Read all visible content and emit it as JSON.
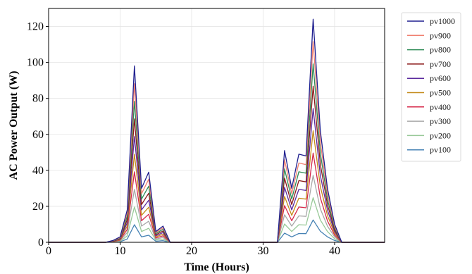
{
  "chart_data": {
    "type": "line",
    "title": "",
    "xlabel": "Time (Hours)",
    "ylabel": "AC Power Output (W)",
    "xlim": [
      0,
      47
    ],
    "ylim": [
      0,
      130
    ],
    "xticks": [
      0,
      10,
      20,
      30,
      40
    ],
    "yticks": [
      0,
      20,
      40,
      60,
      80,
      100,
      120
    ],
    "grid": true,
    "legend_position": "outside-right",
    "x": [
      0,
      1,
      2,
      3,
      4,
      5,
      6,
      7,
      8,
      9,
      10,
      11,
      12,
      13,
      14,
      15,
      16,
      17,
      18,
      19,
      20,
      21,
      22,
      23,
      24,
      25,
      26,
      27,
      28,
      29,
      30,
      31,
      32,
      33,
      34,
      35,
      36,
      37,
      38,
      39,
      40,
      41,
      42,
      43,
      44,
      45,
      46,
      47
    ],
    "series": [
      {
        "name": "pv1000",
        "color": "#1f1f8f",
        "values": [
          0,
          0,
          0,
          0,
          0,
          0,
          0,
          0,
          0,
          1,
          3,
          18,
          98,
          30,
          39,
          6,
          9,
          0,
          0,
          0,
          0,
          0,
          0,
          0,
          0,
          0,
          0,
          0,
          0,
          0,
          0,
          0,
          0,
          51,
          30,
          49,
          48,
          124,
          62,
          30,
          10,
          0,
          0,
          0,
          0,
          0,
          0,
          0
        ]
      },
      {
        "name": "pv900",
        "color": "#f08070",
        "values": [
          0,
          0,
          0,
          0,
          0,
          0,
          0,
          0,
          0,
          0.9,
          2.7,
          16.2,
          88.2,
          27,
          35.1,
          5.4,
          8.1,
          0,
          0,
          0,
          0,
          0,
          0,
          0,
          0,
          0,
          0,
          0,
          0,
          0,
          0,
          0,
          0,
          45.9,
          27,
          44.1,
          43.2,
          111.6,
          55.8,
          27,
          9,
          0,
          0,
          0,
          0,
          0,
          0,
          0
        ]
      },
      {
        "name": "pv800",
        "color": "#2e8b57",
        "values": [
          0,
          0,
          0,
          0,
          0,
          0,
          0,
          0,
          0,
          0.8,
          2.4,
          14.4,
          78.4,
          24,
          31.2,
          4.8,
          7.2,
          0,
          0,
          0,
          0,
          0,
          0,
          0,
          0,
          0,
          0,
          0,
          0,
          0,
          0,
          0,
          0,
          40.8,
          24,
          39.2,
          38.4,
          99.2,
          49.6,
          24,
          8,
          0,
          0,
          0,
          0,
          0,
          0,
          0
        ]
      },
      {
        "name": "pv700",
        "color": "#8b1a1a",
        "values": [
          0,
          0,
          0,
          0,
          0,
          0,
          0,
          0,
          0,
          0.7,
          2.1,
          12.6,
          68.6,
          21,
          27.3,
          4.2,
          6.3,
          0,
          0,
          0,
          0,
          0,
          0,
          0,
          0,
          0,
          0,
          0,
          0,
          0,
          0,
          0,
          0,
          35.7,
          21,
          34.3,
          33.6,
          86.8,
          43.4,
          21,
          7,
          0,
          0,
          0,
          0,
          0,
          0,
          0
        ]
      },
      {
        "name": "pv600",
        "color": "#5b2a9e",
        "values": [
          0,
          0,
          0,
          0,
          0,
          0,
          0,
          0,
          0,
          0.6,
          1.8,
          10.8,
          58.8,
          18,
          23.4,
          3.6,
          5.4,
          0,
          0,
          0,
          0,
          0,
          0,
          0,
          0,
          0,
          0,
          0,
          0,
          0,
          0,
          0,
          0,
          30.6,
          18,
          29.4,
          28.8,
          74.4,
          37.2,
          18,
          6,
          0,
          0,
          0,
          0,
          0,
          0,
          0
        ]
      },
      {
        "name": "pv500",
        "color": "#c48a1a",
        "values": [
          0,
          0,
          0,
          0,
          0,
          0,
          0,
          0,
          0,
          0.5,
          1.5,
          9,
          49,
          15,
          19.5,
          3,
          4.5,
          0,
          0,
          0,
          0,
          0,
          0,
          0,
          0,
          0,
          0,
          0,
          0,
          0,
          0,
          0,
          0,
          25.5,
          15,
          24.5,
          24,
          62,
          31,
          15,
          5,
          0,
          0,
          0,
          0,
          0,
          0,
          0
        ]
      },
      {
        "name": "pv400",
        "color": "#d6284a",
        "values": [
          0,
          0,
          0,
          0,
          0,
          0,
          0,
          0,
          0,
          0.4,
          1.2,
          7.2,
          39.2,
          12,
          15.6,
          2.4,
          3.6,
          0,
          0,
          0,
          0,
          0,
          0,
          0,
          0,
          0,
          0,
          0,
          0,
          0,
          0,
          0,
          0,
          20.4,
          12,
          19.6,
          19.2,
          49.6,
          24.8,
          12,
          4,
          0,
          0,
          0,
          0,
          0,
          0,
          0
        ]
      },
      {
        "name": "pv300",
        "color": "#a8a8a8",
        "values": [
          0,
          0,
          0,
          0,
          0,
          0,
          0,
          0,
          0,
          0.3,
          0.9,
          5.4,
          29.4,
          9,
          11.7,
          1.8,
          2.7,
          0,
          0,
          0,
          0,
          0,
          0,
          0,
          0,
          0,
          0,
          0,
          0,
          0,
          0,
          0,
          0,
          15.3,
          9,
          14.7,
          14.4,
          37.2,
          18.6,
          9,
          3,
          0,
          0,
          0,
          0,
          0,
          0,
          0
        ]
      },
      {
        "name": "pv200",
        "color": "#98c998",
        "values": [
          0,
          0,
          0,
          0,
          0,
          0,
          0,
          0,
          0,
          0.2,
          0.6,
          3.6,
          19.6,
          6,
          7.8,
          1.2,
          1.8,
          0,
          0,
          0,
          0,
          0,
          0,
          0,
          0,
          0,
          0,
          0,
          0,
          0,
          0,
          0,
          0,
          10.2,
          6,
          9.8,
          9.6,
          24.8,
          12.4,
          6,
          2,
          0,
          0,
          0,
          0,
          0,
          0,
          0
        ]
      },
      {
        "name": "pv100",
        "color": "#4682b4",
        "values": [
          0,
          0,
          0,
          0,
          0,
          0,
          0,
          0,
          0,
          0.1,
          0.3,
          1.8,
          9.8,
          3,
          3.9,
          0.6,
          0.9,
          0,
          0,
          0,
          0,
          0,
          0,
          0,
          0,
          0,
          0,
          0,
          0,
          0,
          0,
          0,
          0,
          5.1,
          3,
          4.9,
          4.8,
          12.4,
          6.2,
          3,
          1,
          0,
          0,
          0,
          0,
          0,
          0,
          0
        ]
      }
    ]
  }
}
